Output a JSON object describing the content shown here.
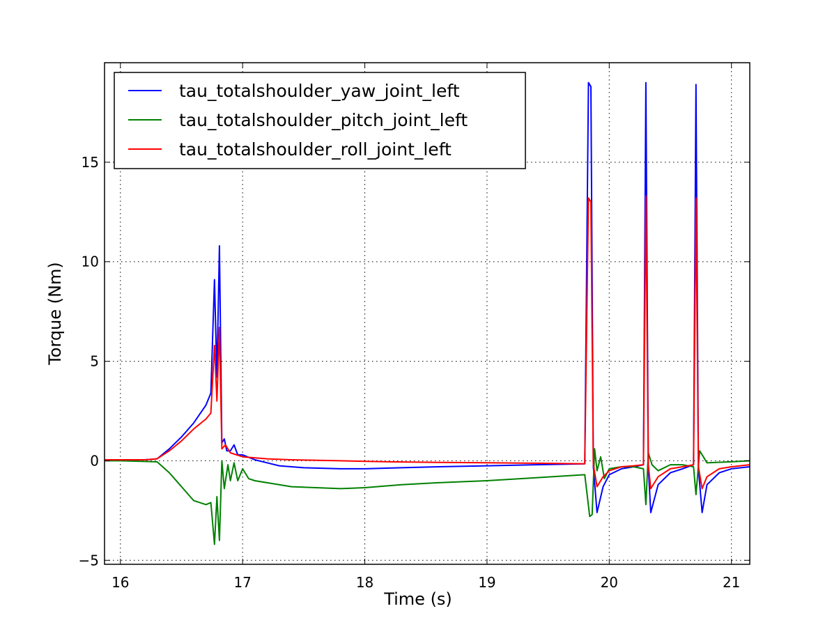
{
  "chart_data": {
    "type": "line",
    "title": "",
    "xlabel": "Time (s)",
    "ylabel": "Torque (Nm)",
    "xlim": [
      15.87,
      21.15
    ],
    "ylim": [
      -5.2,
      20.0
    ],
    "xticks": [
      16,
      17,
      18,
      19,
      20,
      21
    ],
    "yticks": [
      -5,
      0,
      5,
      10,
      15
    ],
    "ytick_labels": [
      "−5",
      "0",
      "5",
      "10",
      "15"
    ],
    "grid": true,
    "legend_position": "upper-left",
    "series": [
      {
        "name": "tau_totalshoulder_yaw_joint_left",
        "color": "#0000ff",
        "points": [
          [
            15.87,
            0.05
          ],
          [
            16.0,
            0.05
          ],
          [
            16.2,
            0.05
          ],
          [
            16.3,
            0.1
          ],
          [
            16.4,
            0.6
          ],
          [
            16.5,
            1.2
          ],
          [
            16.6,
            1.9
          ],
          [
            16.7,
            2.8
          ],
          [
            16.74,
            3.4
          ],
          [
            16.77,
            9.1
          ],
          [
            16.79,
            4.2
          ],
          [
            16.81,
            10.8
          ],
          [
            16.83,
            0.9
          ],
          [
            16.85,
            1.1
          ],
          [
            16.87,
            0.5
          ],
          [
            16.9,
            0.5
          ],
          [
            16.93,
            0.8
          ],
          [
            16.96,
            0.3
          ],
          [
            17.0,
            0.3
          ],
          [
            17.1,
            0.05
          ],
          [
            17.2,
            -0.1
          ],
          [
            17.3,
            -0.25
          ],
          [
            17.5,
            -0.35
          ],
          [
            17.8,
            -0.4
          ],
          [
            18.0,
            -0.4
          ],
          [
            18.3,
            -0.35
          ],
          [
            18.6,
            -0.3
          ],
          [
            19.0,
            -0.25
          ],
          [
            19.4,
            -0.2
          ],
          [
            19.8,
            -0.15
          ],
          [
            19.83,
            19.0
          ],
          [
            19.85,
            18.8
          ],
          [
            19.87,
            -0.3
          ],
          [
            19.9,
            -2.6
          ],
          [
            19.95,
            -1.3
          ],
          [
            20.0,
            -0.7
          ],
          [
            20.1,
            -0.4
          ],
          [
            20.2,
            -0.3
          ],
          [
            20.28,
            -0.2
          ],
          [
            20.3,
            19.0
          ],
          [
            20.32,
            -0.3
          ],
          [
            20.34,
            -2.6
          ],
          [
            20.4,
            -1.2
          ],
          [
            20.5,
            -0.6
          ],
          [
            20.6,
            -0.4
          ],
          [
            20.69,
            -0.2
          ],
          [
            20.71,
            18.9
          ],
          [
            20.73,
            -0.4
          ],
          [
            20.76,
            -2.6
          ],
          [
            20.8,
            -1.2
          ],
          [
            20.9,
            -0.6
          ],
          [
            21.0,
            -0.4
          ],
          [
            21.15,
            -0.3
          ]
        ]
      },
      {
        "name": "tau_totalshoulder_pitch_joint_left",
        "color": "#008000",
        "points": [
          [
            15.87,
            0.0
          ],
          [
            16.0,
            0.0
          ],
          [
            16.3,
            -0.05
          ],
          [
            16.4,
            -0.6
          ],
          [
            16.5,
            -1.3
          ],
          [
            16.6,
            -2.0
          ],
          [
            16.7,
            -2.2
          ],
          [
            16.74,
            -2.1
          ],
          [
            16.77,
            -4.2
          ],
          [
            16.79,
            -1.8
          ],
          [
            16.81,
            -4.0
          ],
          [
            16.83,
            0.0
          ],
          [
            16.85,
            -1.4
          ],
          [
            16.88,
            -0.2
          ],
          [
            16.9,
            -1.0
          ],
          [
            16.93,
            -0.1
          ],
          [
            16.96,
            -1.0
          ],
          [
            17.0,
            -0.4
          ],
          [
            17.05,
            -0.9
          ],
          [
            17.1,
            -1.0
          ],
          [
            17.2,
            -1.1
          ],
          [
            17.4,
            -1.3
          ],
          [
            17.6,
            -1.35
          ],
          [
            17.8,
            -1.4
          ],
          [
            18.0,
            -1.35
          ],
          [
            18.3,
            -1.2
          ],
          [
            18.6,
            -1.1
          ],
          [
            19.0,
            -1.0
          ],
          [
            19.4,
            -0.85
          ],
          [
            19.8,
            -0.7
          ],
          [
            19.84,
            -2.8
          ],
          [
            19.86,
            -2.7
          ],
          [
            19.88,
            0.6
          ],
          [
            19.9,
            -0.5
          ],
          [
            19.93,
            0.2
          ],
          [
            19.96,
            -0.9
          ],
          [
            20.0,
            -0.4
          ],
          [
            20.1,
            -0.3
          ],
          [
            20.2,
            -0.3
          ],
          [
            20.28,
            -0.4
          ],
          [
            20.3,
            -2.2
          ],
          [
            20.32,
            0.4
          ],
          [
            20.35,
            -0.2
          ],
          [
            20.4,
            -0.5
          ],
          [
            20.5,
            -0.2
          ],
          [
            20.6,
            -0.2
          ],
          [
            20.69,
            -0.3
          ],
          [
            20.71,
            -1.7
          ],
          [
            20.74,
            0.5
          ],
          [
            20.77,
            0.2
          ],
          [
            20.8,
            -0.1
          ],
          [
            21.0,
            -0.05
          ],
          [
            21.15,
            0.0
          ]
        ]
      },
      {
        "name": "tau_totalshoulder_roll_joint_left",
        "color": "#ff0000",
        "points": [
          [
            15.87,
            0.05
          ],
          [
            16.0,
            0.05
          ],
          [
            16.2,
            0.05
          ],
          [
            16.3,
            0.1
          ],
          [
            16.4,
            0.5
          ],
          [
            16.5,
            1.0
          ],
          [
            16.6,
            1.6
          ],
          [
            16.7,
            2.1
          ],
          [
            16.74,
            2.4
          ],
          [
            16.77,
            5.8
          ],
          [
            16.79,
            3.0
          ],
          [
            16.81,
            6.7
          ],
          [
            16.83,
            0.6
          ],
          [
            16.86,
            0.8
          ],
          [
            16.9,
            0.4
          ],
          [
            17.0,
            0.2
          ],
          [
            17.2,
            0.1
          ],
          [
            17.4,
            0.05
          ],
          [
            17.8,
            0.0
          ],
          [
            18.2,
            -0.05
          ],
          [
            18.6,
            -0.08
          ],
          [
            19.0,
            -0.1
          ],
          [
            19.4,
            -0.12
          ],
          [
            19.8,
            -0.15
          ],
          [
            19.83,
            13.2
          ],
          [
            19.85,
            13.0
          ],
          [
            19.87,
            -0.2
          ],
          [
            19.9,
            -1.3
          ],
          [
            19.95,
            -0.8
          ],
          [
            20.0,
            -0.5
          ],
          [
            20.1,
            -0.3
          ],
          [
            20.2,
            -0.25
          ],
          [
            20.28,
            -0.2
          ],
          [
            20.3,
            13.3
          ],
          [
            20.32,
            -0.2
          ],
          [
            20.34,
            -1.4
          ],
          [
            20.4,
            -0.8
          ],
          [
            20.5,
            -0.4
          ],
          [
            20.6,
            -0.3
          ],
          [
            20.69,
            -0.2
          ],
          [
            20.71,
            13.2
          ],
          [
            20.73,
            -0.3
          ],
          [
            20.76,
            -1.4
          ],
          [
            20.8,
            -0.8
          ],
          [
            20.9,
            -0.4
          ],
          [
            21.0,
            -0.3
          ],
          [
            21.15,
            -0.2
          ]
        ]
      }
    ]
  }
}
